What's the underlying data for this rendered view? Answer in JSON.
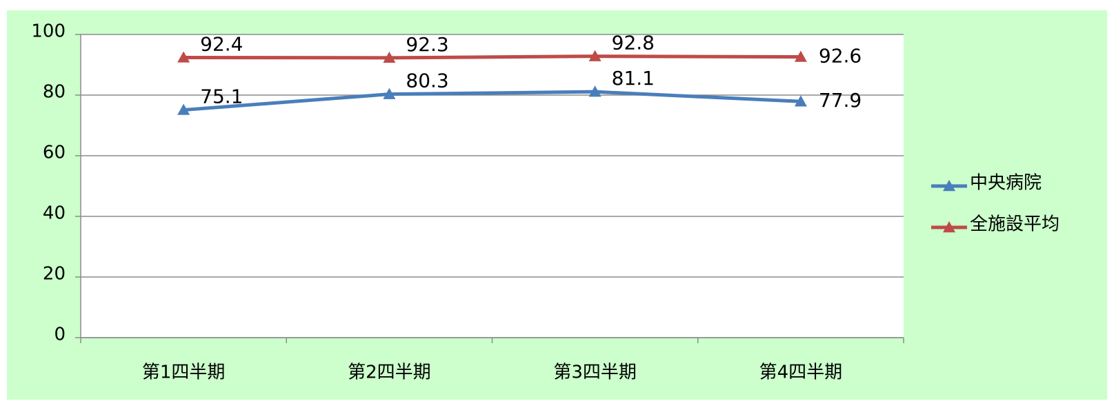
{
  "chart_data": {
    "type": "line",
    "categories": [
      "第1四半期",
      "第2四半期",
      "第3四半期",
      "第4四半期"
    ],
    "series": [
      {
        "name": "中央病院",
        "color": "#4a7ebb",
        "label_color": "#1f2f6b",
        "values": [
          75.1,
          80.3,
          81.1,
          77.9
        ]
      },
      {
        "name": "全施設平均",
        "color": "#be4b48",
        "label_color": "#6b2424",
        "values": [
          92.4,
          92.3,
          92.8,
          92.6
        ]
      }
    ],
    "ylim": [
      0,
      100
    ],
    "yticks": [
      0,
      20,
      40,
      60,
      80,
      100
    ],
    "grid": true,
    "legend": "right"
  }
}
